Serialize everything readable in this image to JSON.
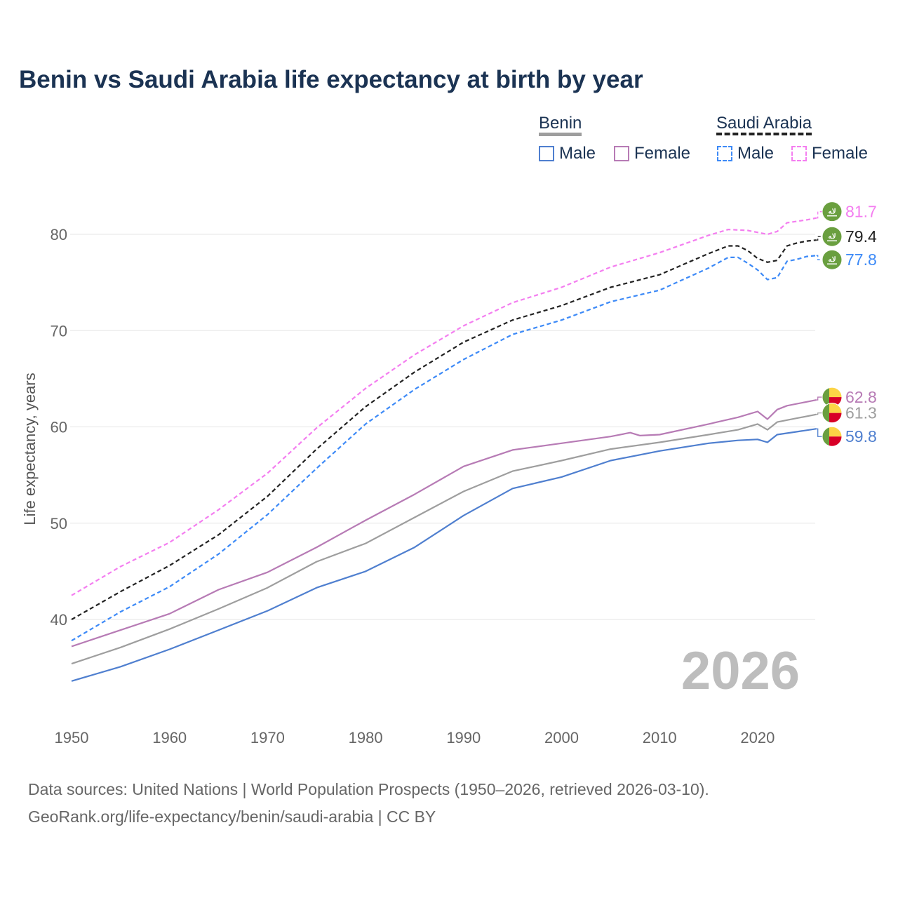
{
  "chart_data": {
    "type": "line",
    "title": "Benin vs Saudi Arabia life expectancy at birth by year",
    "xlabel": "",
    "ylabel": "Life expectancy, years",
    "xlim": [
      1950,
      2026
    ],
    "ylim": [
      30,
      85
    ],
    "x_ticks": [
      "1950",
      "1960",
      "1970",
      "1980",
      "1990",
      "2000",
      "2010",
      "2020"
    ],
    "y_ticks": [
      "40",
      "50",
      "60",
      "70",
      "80"
    ],
    "grid": true,
    "year_watermark": "2026",
    "legend": {
      "groups": [
        {
          "name": "Benin",
          "items": [
            "Male",
            "Female"
          ]
        },
        {
          "name": "Saudi Arabia",
          "items": [
            "Male",
            "Female"
          ]
        }
      ],
      "placement": "top-right"
    },
    "series": [
      {
        "name": "Saudi Arabia Female",
        "country": "Saudi Arabia",
        "color": "#f47ef0",
        "dash": true,
        "end_label": "81.7",
        "x": [
          1950,
          1955,
          1960,
          1965,
          1970,
          1975,
          1980,
          1985,
          1990,
          1995,
          2000,
          2005,
          2010,
          2015,
          2017,
          2019,
          2021,
          2022,
          2023,
          2025,
          2026
        ],
        "y": [
          42.5,
          45.5,
          48.0,
          51.4,
          55.2,
          59.9,
          64.0,
          67.5,
          70.5,
          72.9,
          74.5,
          76.6,
          78.1,
          79.9,
          80.5,
          80.4,
          80.0,
          80.3,
          81.2,
          81.5,
          81.7
        ]
      },
      {
        "name": "Saudi Arabia Total",
        "country": "Saudi Arabia",
        "color": "#222222",
        "dash": true,
        "end_label": "79.4",
        "x": [
          1950,
          1955,
          1960,
          1965,
          1970,
          1975,
          1980,
          1985,
          1990,
          1995,
          2000,
          2005,
          2010,
          2015,
          2017,
          2018,
          2019,
          2020,
          2021,
          2022,
          2023,
          2024,
          2025,
          2026
        ],
        "y": [
          40.0,
          42.9,
          45.6,
          48.8,
          52.8,
          57.7,
          62.1,
          65.7,
          68.8,
          71.1,
          72.6,
          74.5,
          75.8,
          78.0,
          78.8,
          78.8,
          78.3,
          77.5,
          77.1,
          77.3,
          78.8,
          79.1,
          79.3,
          79.4
        ]
      },
      {
        "name": "Saudi Arabia Male",
        "country": "Saudi Arabia",
        "color": "#3d8af7",
        "dash": true,
        "end_label": "77.8",
        "x": [
          1950,
          1955,
          1960,
          1965,
          1970,
          1975,
          1980,
          1985,
          1990,
          1995,
          2000,
          2005,
          2010,
          2015,
          2017,
          2018,
          2019,
          2020,
          2021,
          2022,
          2023,
          2024,
          2025,
          2026
        ],
        "y": [
          37.8,
          40.8,
          43.4,
          46.8,
          50.9,
          55.7,
          60.3,
          63.9,
          67.0,
          69.6,
          71.1,
          73.0,
          74.2,
          76.5,
          77.6,
          77.6,
          77.0,
          76.3,
          75.3,
          75.5,
          77.2,
          77.4,
          77.7,
          77.8
        ]
      },
      {
        "name": "Benin Female",
        "country": "Benin",
        "color": "#b77bb5",
        "dash": false,
        "end_label": "62.8",
        "x": [
          1950,
          1955,
          1960,
          1965,
          1970,
          1975,
          1980,
          1985,
          1990,
          1995,
          2000,
          2005,
          2007,
          2008,
          2010,
          2015,
          2018,
          2020,
          2021,
          2022,
          2023,
          2025,
          2026
        ],
        "y": [
          37.2,
          38.9,
          40.6,
          43.1,
          44.9,
          47.5,
          50.3,
          53.0,
          55.9,
          57.6,
          58.3,
          59.0,
          59.4,
          59.1,
          59.2,
          60.3,
          61.0,
          61.6,
          60.8,
          61.8,
          62.2,
          62.6,
          62.8
        ]
      },
      {
        "name": "Benin Total",
        "country": "Benin",
        "color": "#9e9e9e",
        "dash": false,
        "end_label": "61.3",
        "x": [
          1950,
          1955,
          1960,
          1965,
          1970,
          1975,
          1980,
          1985,
          1990,
          1995,
          2000,
          2005,
          2010,
          2015,
          2018,
          2020,
          2021,
          2022,
          2024,
          2026
        ],
        "y": [
          35.4,
          37.1,
          39.0,
          41.1,
          43.3,
          46.0,
          47.9,
          50.6,
          53.3,
          55.4,
          56.5,
          57.7,
          58.4,
          59.2,
          59.7,
          60.3,
          59.7,
          60.5,
          60.9,
          61.3
        ]
      },
      {
        "name": "Benin Male",
        "country": "Benin",
        "color": "#4f7fcf",
        "dash": false,
        "end_label": "59.8",
        "x": [
          1950,
          1955,
          1960,
          1965,
          1970,
          1975,
          1980,
          1985,
          1990,
          1995,
          2000,
          2005,
          2010,
          2015,
          2018,
          2020,
          2021,
          2022,
          2024,
          2026
        ],
        "y": [
          33.6,
          35.1,
          36.9,
          38.9,
          40.9,
          43.3,
          45.0,
          47.5,
          50.8,
          53.6,
          54.8,
          56.5,
          57.5,
          58.3,
          58.6,
          58.7,
          58.4,
          59.2,
          59.5,
          59.8
        ]
      }
    ]
  },
  "source": {
    "line1": "Data sources: United Nations | World Population Prospects (1950–2026, retrieved 2026-03-10).",
    "line2": "GeoRank.org/life-expectancy/benin/saudi-arabia | CC BY"
  }
}
